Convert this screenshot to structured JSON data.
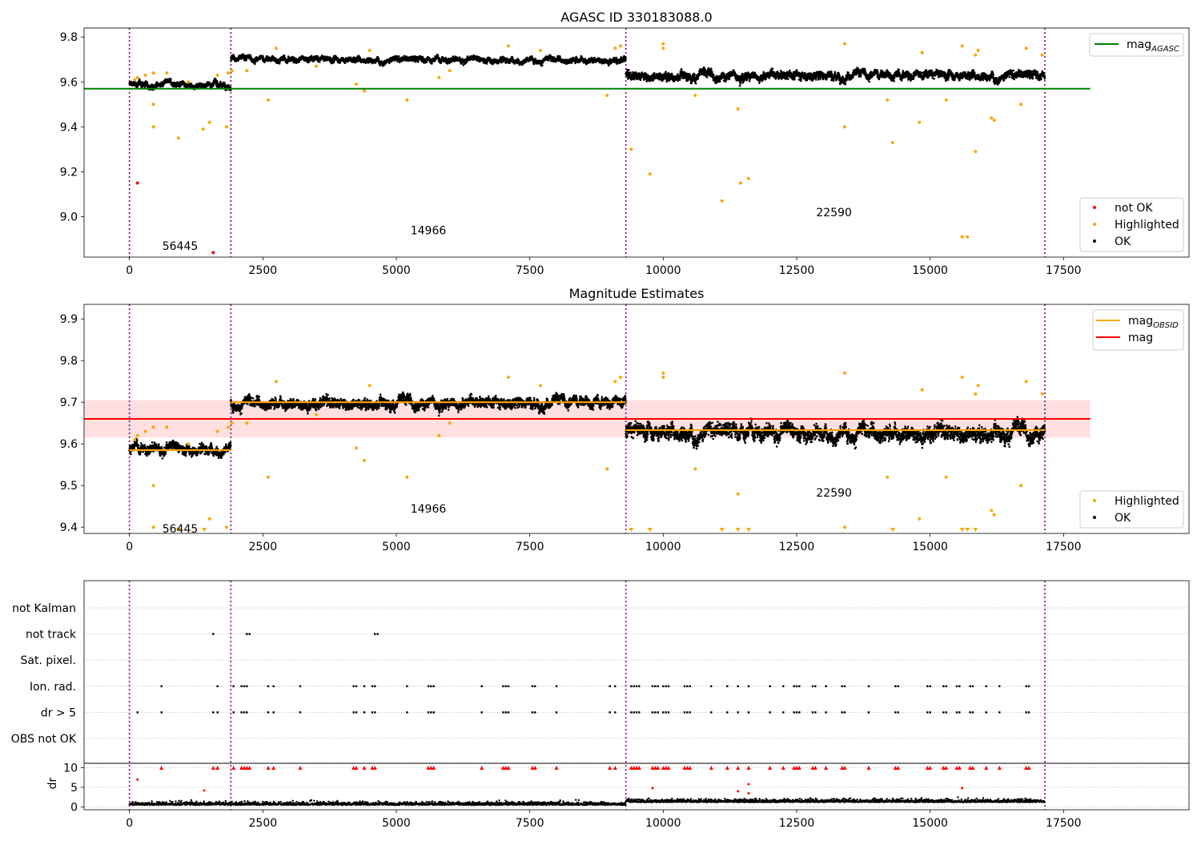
{
  "chart_data": [
    {
      "type": "scatter",
      "title": "AGASC ID 330183088.0",
      "xlim": [
        -850,
        19850
      ],
      "ylim": [
        8.82,
        9.84
      ],
      "xticks": [
        0,
        2500,
        5000,
        7500,
        10000,
        12500,
        15000,
        17500
      ],
      "yticks": [
        9.0,
        9.2,
        9.4,
        9.6,
        9.8
      ],
      "ytick_labels": [
        "9.0",
        "9.2",
        "9.4",
        "9.6",
        "9.8"
      ],
      "obs_boundaries": [
        0,
        1900,
        9300,
        17150
      ],
      "obs_labels": [
        {
          "text": "56445",
          "x": 950,
          "y": 8.87
        },
        {
          "text": "14966",
          "x": 5600,
          "y": 8.94
        },
        {
          "text": "22590",
          "x": 13200,
          "y": 9.02
        }
      ],
      "segments": [
        {
          "x0": 0,
          "x1": 1900,
          "level": 9.59,
          "spread": 0.015
        },
        {
          "x0": 1900,
          "x1": 9300,
          "level": 9.7,
          "spread": 0.015
        },
        {
          "x0": 9300,
          "x1": 17150,
          "level": 9.63,
          "spread": 0.022
        }
      ],
      "hline": {
        "name": "mag_AGASC",
        "y": 9.57,
        "x0": -850,
        "x1": 18000,
        "color": "#008000"
      },
      "highlighted": [
        [
          100,
          9.61
        ],
        [
          150,
          9.62
        ],
        [
          300,
          9.63
        ],
        [
          450,
          9.64
        ],
        [
          450,
          9.5
        ],
        [
          450,
          9.4
        ],
        [
          700,
          9.64
        ],
        [
          920,
          9.35
        ],
        [
          1100,
          9.6
        ],
        [
          1380,
          9.39
        ],
        [
          1500,
          9.42
        ],
        [
          1650,
          9.63
        ],
        [
          1820,
          9.4
        ],
        [
          1850,
          9.64
        ],
        [
          1920,
          9.65
        ],
        [
          2200,
          9.65
        ],
        [
          2600,
          9.52
        ],
        [
          2750,
          9.75
        ],
        [
          3500,
          9.67
        ],
        [
          4250,
          9.59
        ],
        [
          4400,
          9.56
        ],
        [
          4500,
          9.74
        ],
        [
          5200,
          9.52
        ],
        [
          5800,
          9.62
        ],
        [
          6000,
          9.65
        ],
        [
          7100,
          9.76
        ],
        [
          7700,
          9.74
        ],
        [
          8950,
          9.54
        ],
        [
          9100,
          9.75
        ],
        [
          9200,
          9.76
        ],
        [
          9400,
          9.3
        ],
        [
          9750,
          9.19
        ],
        [
          10000,
          9.75
        ],
        [
          10000,
          9.77
        ],
        [
          10600,
          9.54
        ],
        [
          11100,
          9.07
        ],
        [
          11400,
          9.48
        ],
        [
          11450,
          9.15
        ],
        [
          11600,
          9.17
        ],
        [
          13400,
          9.77
        ],
        [
          13400,
          9.4
        ],
        [
          14200,
          9.52
        ],
        [
          14300,
          9.33
        ],
        [
          14800,
          9.42
        ],
        [
          14850,
          9.73
        ],
        [
          15300,
          9.52
        ],
        [
          15600,
          9.76
        ],
        [
          15600,
          8.91
        ],
        [
          15700,
          8.91
        ],
        [
          15850,
          9.29
        ],
        [
          15850,
          9.72
        ],
        [
          15900,
          9.74
        ],
        [
          16150,
          9.44
        ],
        [
          16200,
          9.43
        ],
        [
          16700,
          9.5
        ],
        [
          16800,
          9.75
        ],
        [
          17100,
          9.72
        ]
      ],
      "not_ok": [
        [
          150,
          9.15
        ],
        [
          1570,
          8.84
        ]
      ],
      "legend_top": [
        {
          "label": "mag",
          "sub": "AGASC",
          "color": "#008000"
        }
      ],
      "legend_bottom": [
        {
          "label": "not OK",
          "color": "#ff0000"
        },
        {
          "label": "Highlighted",
          "color": "#ffa500"
        },
        {
          "label": "OK",
          "color": "#000000"
        }
      ]
    },
    {
      "type": "scatter",
      "title": "Magnitude Estimates",
      "xlim": [
        -850,
        19850
      ],
      "ylim": [
        9.385,
        9.935
      ],
      "xticks": [
        0,
        2500,
        5000,
        7500,
        10000,
        12500,
        15000,
        17500
      ],
      "yticks": [
        9.4,
        9.5,
        9.6,
        9.7,
        9.8,
        9.9
      ],
      "ytick_labels": [
        "9.4",
        "9.5",
        "9.6",
        "9.7",
        "9.8",
        "9.9"
      ],
      "obs_boundaries": [
        0,
        1900,
        9300,
        17150
      ],
      "obs_labels": [
        {
          "text": "56445",
          "x": 950,
          "y": 9.397
        },
        {
          "text": "14966",
          "x": 5600,
          "y": 9.445
        },
        {
          "text": "22590",
          "x": 13200,
          "y": 9.483
        }
      ],
      "segments": [
        {
          "x0": 0,
          "x1": 1900,
          "level": 9.59,
          "spread": 0.015
        },
        {
          "x0": 1900,
          "x1": 9300,
          "level": 9.7,
          "spread": 0.015
        },
        {
          "x0": 9300,
          "x1": 17150,
          "level": 9.63,
          "spread": 0.022
        }
      ],
      "mag_obsid": [
        {
          "x0": 0,
          "x1": 1900,
          "y": 9.585
        },
        {
          "x0": 1900,
          "x1": 9300,
          "y": 9.7
        },
        {
          "x0": 9300,
          "x1": 17150,
          "y": 9.633
        }
      ],
      "mag": {
        "y": 9.66,
        "band": [
          9.615,
          9.705
        ],
        "x0": -850,
        "x1": 18000
      },
      "highlighted": [
        [
          100,
          9.61
        ],
        [
          150,
          9.62
        ],
        [
          300,
          9.63
        ],
        [
          450,
          9.64
        ],
        [
          450,
          9.5
        ],
        [
          450,
          9.4
        ],
        [
          700,
          9.64
        ],
        [
          1100,
          9.6
        ],
        [
          1500,
          9.42
        ],
        [
          1650,
          9.63
        ],
        [
          1820,
          9.4
        ],
        [
          1850,
          9.64
        ],
        [
          1920,
          9.65
        ],
        [
          2200,
          9.65
        ],
        [
          2600,
          9.52
        ],
        [
          2750,
          9.75
        ],
        [
          3500,
          9.67
        ],
        [
          4250,
          9.59
        ],
        [
          4400,
          9.56
        ],
        [
          4500,
          9.74
        ],
        [
          5200,
          9.52
        ],
        [
          5800,
          9.62
        ],
        [
          6000,
          9.65
        ],
        [
          7100,
          9.76
        ],
        [
          7700,
          9.74
        ],
        [
          8950,
          9.54
        ],
        [
          9100,
          9.75
        ],
        [
          9200,
          9.76
        ],
        [
          10000,
          9.76
        ],
        [
          10000,
          9.77
        ],
        [
          10600,
          9.54
        ],
        [
          11400,
          9.48
        ],
        [
          13400,
          9.77
        ],
        [
          13400,
          9.4
        ],
        [
          14200,
          9.52
        ],
        [
          14800,
          9.42
        ],
        [
          14850,
          9.73
        ],
        [
          15300,
          9.52
        ],
        [
          15600,
          9.76
        ],
        [
          15850,
          9.72
        ],
        [
          15900,
          9.74
        ],
        [
          16150,
          9.44
        ],
        [
          16200,
          9.43
        ],
        [
          16700,
          9.5
        ],
        [
          16800,
          9.75
        ],
        [
          17100,
          9.72
        ]
      ],
      "below_axis": [
        920,
        1400,
        9400,
        9750,
        11100,
        11400,
        11600,
        14300,
        15600,
        15700,
        15850
      ],
      "legend_top": [
        {
          "label": "mag",
          "sub": "OBSID",
          "color": "#ffa500"
        },
        {
          "label": "mag",
          "sub": "",
          "color": "#ff0000"
        }
      ],
      "legend_bottom": [
        {
          "label": "Highlighted",
          "color": "#ffa500"
        },
        {
          "label": "OK",
          "color": "#000000"
        }
      ]
    },
    {
      "type": "scatter",
      "title": "",
      "xlim": [
        -850,
        19850
      ],
      "obs_boundaries": [
        0,
        1900,
        9300,
        17150
      ],
      "flag_rows": [
        "not Kalman",
        "not track",
        "Sat. pixel.",
        "Ion. rad.",
        "dr > 5",
        "OBS not OK"
      ],
      "flag_points": {
        "not track": [
          1570,
          2200,
          2250,
          4600,
          4650
        ],
        "Ion. rad.": [
          600,
          1650,
          1950,
          2100,
          2150,
          2200,
          2600,
          2700,
          3200,
          4200,
          4250,
          4400,
          4550,
          4600,
          5200,
          5600,
          5650,
          5700,
          6600,
          7000,
          7050,
          7100,
          7550,
          7600,
          8000,
          9000,
          9100,
          9400,
          9450,
          9500,
          9550,
          9800,
          9850,
          9900,
          10000,
          10050,
          10100,
          10400,
          10450,
          10500,
          10900,
          11200,
          11400,
          11600,
          12000,
          12250,
          12450,
          12500,
          12550,
          12800,
          12850,
          13050,
          13350,
          13400,
          13850,
          14350,
          14400,
          14950,
          15000,
          15250,
          15300,
          15500,
          15550,
          15750,
          15800,
          16050,
          16300,
          16800,
          16850
        ],
        "dr > 5": [
          150,
          600,
          1570,
          1650,
          1950,
          2100,
          2150,
          2200,
          2600,
          2700,
          3200,
          4200,
          4250,
          4400,
          4550,
          4600,
          5200,
          5600,
          5650,
          5700,
          6600,
          7000,
          7050,
          7100,
          7550,
          7600,
          8000,
          9000,
          9100,
          9400,
          9450,
          9500,
          9550,
          9800,
          9850,
          9900,
          10000,
          10050,
          10100,
          10400,
          10450,
          10500,
          10900,
          11200,
          11400,
          11600,
          12000,
          12250,
          12450,
          12500,
          12550,
          12800,
          12850,
          13050,
          13350,
          13400,
          13850,
          14350,
          14400,
          14950,
          15000,
          15250,
          15300,
          15500,
          15550,
          15750,
          15800,
          16050,
          16300,
          16800,
          16850
        ]
      },
      "dr_axis": {
        "ylabel": "dr",
        "yticks": [
          0,
          5,
          10
        ],
        "ylim": [
          -0.3,
          10.3
        ],
        "xticks": [
          0,
          2500,
          5000,
          7500,
          10000,
          12500,
          15000,
          17500
        ],
        "dr_gt10": [
          600,
          1570,
          1650,
          1950,
          2100,
          2150,
          2200,
          2250,
          2600,
          2700,
          3200,
          4200,
          4250,
          4400,
          4550,
          4600,
          5600,
          5650,
          5700,
          6600,
          7000,
          7050,
          7100,
          7550,
          7600,
          8000,
          9000,
          9100,
          9400,
          9450,
          9500,
          9550,
          9800,
          9850,
          9900,
          10000,
          10050,
          10100,
          10400,
          10450,
          10500,
          10900,
          11200,
          11400,
          11600,
          12000,
          12250,
          12450,
          12500,
          12550,
          12800,
          12850,
          13050,
          13350,
          13400,
          13850,
          14350,
          14400,
          14950,
          15000,
          15250,
          15300,
          15500,
          15550,
          15750,
          15800,
          16050,
          16300,
          16800,
          16850
        ],
        "dr_mid": [
          [
            150,
            7.0
          ],
          [
            1400,
            4.2
          ],
          [
            9800,
            4.8
          ],
          [
            11400,
            4.0
          ],
          [
            11600,
            5.8
          ],
          [
            11600,
            3.5
          ],
          [
            15600,
            4.8
          ]
        ]
      }
    }
  ]
}
